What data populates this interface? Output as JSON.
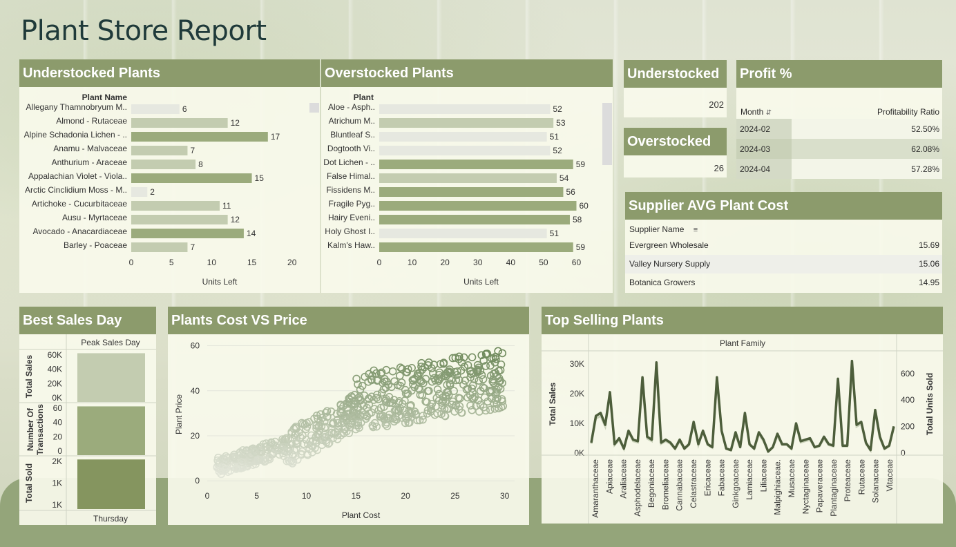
{
  "page_title": "Plant Store Report",
  "colors": {
    "header": "#8c9b6c",
    "bar_dark": "#9bab7c",
    "bar_mid": "#c3ccb0",
    "bar_light": "#e6e8e0",
    "line": "#4d5e3b"
  },
  "understocked_plants": {
    "title": "Understocked Plants",
    "column_header": "Plant Name",
    "axis_title": "Units Left"
  },
  "overstocked_plants": {
    "title": "Overstocked Plants",
    "column_header": "Plant",
    "axis_title": "Units Left"
  },
  "kpi": {
    "understocked_title": "Understocked",
    "understocked_value": "202",
    "overstocked_title": "Overstocked",
    "overstocked_value": "26"
  },
  "profit": {
    "title": "Profit %",
    "col_month": "Month",
    "col_ratio": "Profitability Ratio",
    "rows": [
      {
        "month": "2024-02",
        "ratio": "52.50%"
      },
      {
        "month": "2024-03",
        "ratio": "62.08%"
      },
      {
        "month": "2024-04",
        "ratio": "57.28%"
      }
    ]
  },
  "supplier": {
    "title": "Supplier AVG Plant Cost",
    "col_name": "Supplier Name",
    "rows": [
      {
        "name": "Evergreen Wholesale",
        "value": "15.69"
      },
      {
        "name": "Valley Nursery Supply",
        "value": "15.06"
      },
      {
        "name": "Botanica Growers",
        "value": "14.95"
      }
    ]
  },
  "best_sales_day": {
    "title": "Best Sales Day",
    "column_header": "Peak Sales Day",
    "day": "Thursday",
    "rows": [
      {
        "label": "Total Sales",
        "ticks": [
          "60K",
          "40K",
          "20K",
          "0K"
        ]
      },
      {
        "label": "Number Of Transactions",
        "ticks": [
          "60",
          "40",
          "20",
          "0"
        ]
      },
      {
        "label": "Total Sold",
        "ticks": [
          "2K",
          "1K",
          "1K"
        ]
      }
    ]
  },
  "plants_cost_price": {
    "title": "Plants Cost VS Price"
  },
  "top_selling": {
    "title": "Top Selling Plants",
    "column_header": "Plant Family",
    "y_left_title": "Total Sales",
    "y_right_title": "Total Units Sold"
  },
  "chart_data": [
    {
      "type": "bar",
      "orientation": "horizontal",
      "title": "Understocked Plants",
      "categories": [
        "Allegany Thamnobryum M..",
        "Almond - Rutaceae",
        "Alpine Schadonia Lichen - ..",
        "Anamu - Malvaceae",
        "Anthurium - Araceae",
        "Appalachian Violet - Viola..",
        "Arctic Cinclidium Moss - M..",
        "Artichoke - Cucurbitaceae",
        "Ausu - Myrtaceae",
        "Avocado - Anacardiaceae",
        "Barley - Poaceae"
      ],
      "values": [
        6,
        12,
        17,
        7,
        8,
        15,
        2,
        11,
        12,
        14,
        7
      ],
      "xlabel": "Units Left",
      "ylabel": "Plant Name",
      "xlim": [
        0,
        22
      ],
      "xticks": [
        0,
        5,
        10,
        15,
        20
      ]
    },
    {
      "type": "bar",
      "orientation": "horizontal",
      "title": "Overstocked Plants",
      "categories": [
        "Aloe - Asph..",
        "Atrichum M..",
        "Bluntleaf S..",
        "Dogtooth Vi..",
        "Dot Lichen - ..",
        "False Himal..",
        "Fissidens M..",
        "Fragile Pyg..",
        "Hairy Eveni..",
        "Holy Ghost I..",
        "Kalm's Haw.."
      ],
      "values": [
        52,
        53,
        51,
        52,
        59,
        54,
        56,
        60,
        58,
        51,
        59
      ],
      "xlabel": "Units Left",
      "ylabel": "Plant",
      "xlim": [
        0,
        62
      ],
      "xticks": [
        0,
        10,
        20,
        30,
        40,
        50,
        60
      ]
    },
    {
      "type": "bar",
      "title": "Best Sales Day",
      "categories": [
        "Thursday"
      ],
      "series": [
        {
          "name": "Total Sales",
          "values": [
            62000
          ],
          "ylim": [
            0,
            65000
          ]
        },
        {
          "name": "Number Of Transactions",
          "values": [
            62
          ],
          "ylim": [
            0,
            65
          ]
        },
        {
          "name": "Total Sold",
          "values": [
            2200
          ],
          "ylim": [
            0,
            2300
          ]
        }
      ]
    },
    {
      "type": "scatter",
      "title": "Plants Cost VS Price",
      "xlabel": "Plant Cost",
      "ylabel": "Plant Price",
      "xlim": [
        0,
        31
      ],
      "ylim": [
        -3,
        62
      ],
      "xticks": [
        0,
        5,
        10,
        15,
        20,
        25,
        30
      ],
      "yticks": [
        0,
        20,
        40,
        60
      ],
      "point_count": 700
    },
    {
      "type": "line",
      "title": "Top Selling Plants",
      "xlabel": "Plant Family",
      "x_tick_labels": [
        "Amaranthaceae",
        "Apiaceae",
        "Araliaceae",
        "Asphodelaceae",
        "Begoniaceae",
        "Bromeliaceae",
        "Cannabaceae",
        "Celastraceae",
        "Ericaceae",
        "Fabaceae",
        "Ginkgoaceae",
        "Lamiaceae",
        "Liliaceae",
        "Malpighiaceae.",
        "Musaceae",
        "Nyctaginaceae",
        "Papaveraceae",
        "Plantaginaceae",
        "Proteaceae",
        "Rutaceae",
        "Solanaceae",
        "Vitaceae"
      ],
      "y_left": {
        "label": "Total Sales",
        "ticks": [
          "0K",
          "10K",
          "20K",
          "30K"
        ],
        "ylim": [
          0,
          33000
        ]
      },
      "y_right": {
        "label": "Total Units Sold",
        "ticks": [
          "0",
          "200",
          "400",
          "600"
        ],
        "ylim": [
          0,
          740
        ]
      },
      "series": [
        {
          "name": "Total Sales",
          "axis": "left",
          "values": [
            3500,
            12500,
            13500,
            9500,
            20500,
            3000,
            5000,
            1500,
            7500,
            4500,
            4000,
            25500,
            5500,
            4500,
            30500,
            3500,
            4500,
            3500,
            1500,
            4500,
            1500,
            3000,
            10500,
            3000,
            7500,
            3000,
            2000,
            25500,
            7500,
            1500,
            1000,
            7000,
            2000,
            13500,
            3000,
            1500,
            7000,
            4500,
            500,
            2000,
            6500,
            3000,
            3000,
            1500,
            10000,
            4000,
            4500,
            5000,
            2000,
            2500,
            5500,
            3000,
            2500,
            25000,
            2500,
            2500,
            31000,
            9500,
            10500,
            3500,
            1000,
            14500,
            5500,
            1500,
            2500,
            9000
          ]
        },
        {
          "name": "Total Units Sold",
          "axis": "right",
          "values": [
            70,
            260,
            280,
            200,
            430,
            60,
            100,
            30,
            160,
            90,
            80,
            530,
            110,
            90,
            630,
            70,
            90,
            70,
            30,
            90,
            30,
            60,
            220,
            60,
            160,
            60,
            40,
            530,
            160,
            30,
            20,
            140,
            40,
            280,
            60,
            30,
            140,
            90,
            10,
            40,
            130,
            60,
            60,
            30,
            210,
            80,
            90,
            100,
            40,
            50,
            110,
            60,
            50,
            520,
            50,
            50,
            640,
            200,
            220,
            70,
            20,
            300,
            110,
            30,
            50,
            190
          ]
        }
      ]
    }
  ]
}
